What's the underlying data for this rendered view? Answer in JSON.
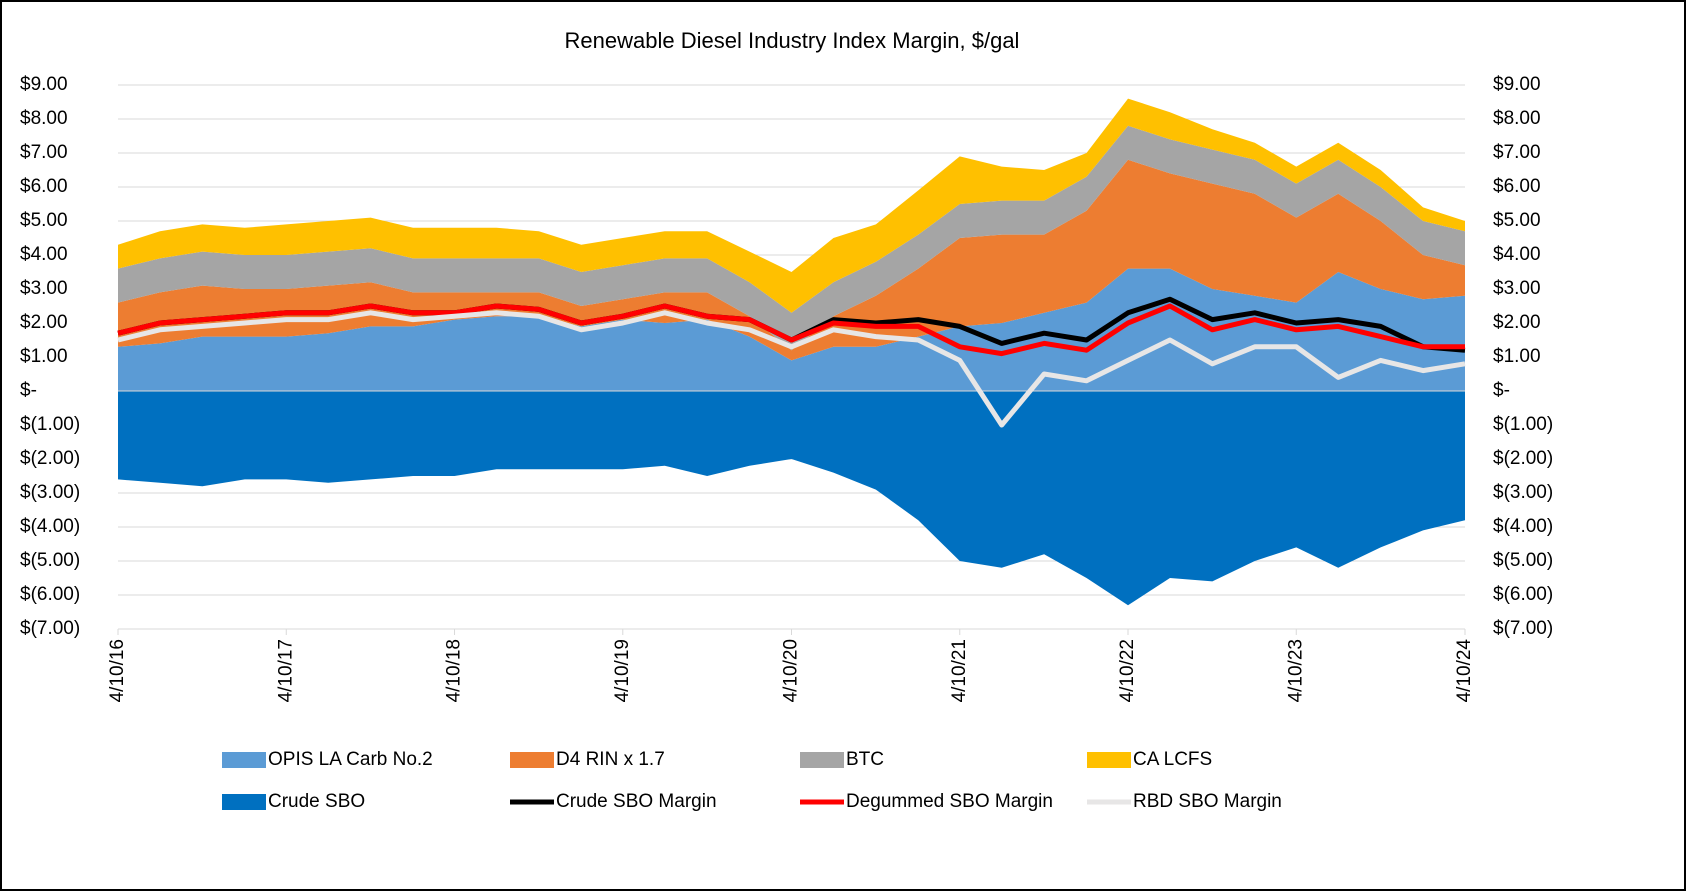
{
  "chart_data": {
    "type": "area",
    "title": "Renewable Diesel Industry Index Margin, $/gal",
    "x": [
      "4/10/16",
      "7/10/16",
      "10/10/16",
      "1/10/17",
      "4/10/17",
      "7/10/17",
      "10/10/17",
      "1/10/18",
      "4/10/18",
      "7/10/18",
      "10/10/18",
      "1/10/19",
      "4/10/19",
      "7/10/19",
      "10/10/19",
      "1/10/20",
      "4/10/20",
      "7/10/20",
      "10/10/20",
      "1/10/21",
      "4/10/21",
      "7/10/21",
      "10/10/21",
      "1/10/22",
      "4/10/22",
      "7/10/22",
      "10/10/22",
      "1/10/23",
      "4/10/23",
      "7/10/23",
      "10/10/23",
      "1/10/24",
      "4/10/24"
    ],
    "xlim": [
      "4/10/16",
      "4/10/24"
    ],
    "xticks": [
      "4/10/16",
      "4/10/17",
      "4/10/18",
      "4/10/19",
      "4/10/20",
      "4/10/21",
      "4/10/22",
      "4/10/23",
      "4/10/24"
    ],
    "ylim": [
      -7,
      9
    ],
    "yticks": [
      {
        "value": 9,
        "label": "$9.00"
      },
      {
        "value": 8,
        "label": "$8.00"
      },
      {
        "value": 7,
        "label": "$7.00"
      },
      {
        "value": 6,
        "label": "$6.00"
      },
      {
        "value": 5,
        "label": "$5.00"
      },
      {
        "value": 4,
        "label": "$4.00"
      },
      {
        "value": 3,
        "label": "$3.00"
      },
      {
        "value": 2,
        "label": "$2.00"
      },
      {
        "value": 1,
        "label": "$1.00"
      },
      {
        "value": 0,
        "label": "$-"
      },
      {
        "value": -1,
        "label": "$(1.00)"
      },
      {
        "value": -2,
        "label": "$(2.00)"
      },
      {
        "value": -3,
        "label": "$(3.00)"
      },
      {
        "value": -4,
        "label": "$(4.00)"
      },
      {
        "value": -5,
        "label": "$(5.00)"
      },
      {
        "value": -6,
        "label": "$(6.00)"
      },
      {
        "value": -7,
        "label": "$(7.00)"
      }
    ],
    "y2lim": [
      -7,
      9
    ],
    "y2ticks": [
      {
        "value": 9,
        "label": "$9.00"
      },
      {
        "value": 8,
        "label": "$8.00"
      },
      {
        "value": 7,
        "label": "$7.00"
      },
      {
        "value": 6,
        "label": "$6.00"
      },
      {
        "value": 5,
        "label": "$5.00"
      },
      {
        "value": 4,
        "label": "$4.00"
      },
      {
        "value": 3,
        "label": "$3.00"
      },
      {
        "value": 2,
        "label": "$2.00"
      },
      {
        "value": 1,
        "label": "$1.00"
      },
      {
        "value": 0,
        "label": "$-"
      },
      {
        "value": -1,
        "label": "$(1.00)"
      },
      {
        "value": -2,
        "label": "$(2.00)"
      },
      {
        "value": -3,
        "label": "$(3.00)"
      },
      {
        "value": -4,
        "label": "$(4.00)"
      },
      {
        "value": -5,
        "label": "$(5.00)"
      },
      {
        "value": -6,
        "label": "$(6.00)"
      },
      {
        "value": -7,
        "label": "$(7.00)"
      }
    ],
    "grid": true,
    "series": [
      {
        "name": "OPIS LA Carb No.2",
        "color": "#5b9bd5",
        "kind": "stacked-area",
        "values": [
          1.3,
          1.4,
          1.6,
          1.6,
          1.6,
          1.7,
          1.9,
          1.9,
          2.1,
          2.2,
          2.2,
          1.9,
          2.1,
          2.0,
          2.1,
          1.6,
          0.9,
          1.3,
          1.3,
          1.6,
          1.9,
          2.0,
          2.3,
          2.6,
          3.6,
          3.6,
          3.0,
          2.8,
          2.6,
          3.5,
          3.0,
          2.7,
          2.8
        ]
      },
      {
        "name": "D4 RIN x 1.7",
        "color": "#ed7d31",
        "kind": "stacked-area",
        "values": [
          1.3,
          1.5,
          1.5,
          1.4,
          1.4,
          1.4,
          1.3,
          1.0,
          0.8,
          0.7,
          0.7,
          0.6,
          0.6,
          0.9,
          0.8,
          0.6,
          0.3,
          0.9,
          1.5,
          2.0,
          2.6,
          2.6,
          2.3,
          2.7,
          3.2,
          2.8,
          3.1,
          3.0,
          2.5,
          2.3,
          2.0,
          1.3,
          0.9
        ]
      },
      {
        "name": "BTC",
        "color": "#a5a5a5",
        "kind": "stacked-area",
        "values": [
          1.0,
          1.0,
          1.0,
          1.0,
          1.0,
          1.0,
          1.0,
          1.0,
          1.0,
          1.0,
          1.0,
          1.0,
          1.0,
          1.0,
          1.0,
          1.0,
          1.1,
          1.0,
          1.0,
          1.0,
          1.0,
          1.0,
          1.0,
          1.0,
          1.0,
          1.0,
          1.0,
          1.0,
          1.0,
          1.0,
          1.0,
          1.0,
          1.0
        ]
      },
      {
        "name": "CA LCFS",
        "color": "#ffc000",
        "kind": "stacked-area",
        "values": [
          0.7,
          0.8,
          0.8,
          0.8,
          0.9,
          0.9,
          0.9,
          0.9,
          0.9,
          0.9,
          0.8,
          0.8,
          0.8,
          0.8,
          0.8,
          0.9,
          1.2,
          1.3,
          1.1,
          1.3,
          1.4,
          1.0,
          0.9,
          0.7,
          0.8,
          0.8,
          0.6,
          0.5,
          0.5,
          0.5,
          0.5,
          0.4,
          0.3
        ]
      },
      {
        "name": "Crude SBO",
        "color": "#0070c0",
        "kind": "area",
        "values": [
          -2.6,
          -2.7,
          -2.8,
          -2.6,
          -2.6,
          -2.7,
          -2.6,
          -2.5,
          -2.5,
          -2.3,
          -2.3,
          -2.3,
          -2.3,
          -2.2,
          -2.5,
          -2.2,
          -2.0,
          -2.4,
          -2.9,
          -3.8,
          -5.0,
          -5.2,
          -4.8,
          -5.5,
          -6.3,
          -5.5,
          -5.6,
          -5.0,
          -4.6,
          -5.2,
          -4.6,
          -4.1,
          -3.8
        ]
      },
      {
        "name": "Crude SBO Margin",
        "color": "#000000",
        "kind": "line",
        "values": [
          1.7,
          2.0,
          2.1,
          2.2,
          2.3,
          2.3,
          2.5,
          2.3,
          2.3,
          2.5,
          2.4,
          2.0,
          2.2,
          2.5,
          2.2,
          2.1,
          1.5,
          2.1,
          2.0,
          2.1,
          1.9,
          1.4,
          1.7,
          1.5,
          2.3,
          2.7,
          2.1,
          2.3,
          2.0,
          2.1,
          1.9,
          1.3,
          1.2
        ]
      },
      {
        "name": "Degummed SBO Margin",
        "color": "#ff0000",
        "kind": "line",
        "values": [
          1.7,
          2.0,
          2.1,
          2.2,
          2.3,
          2.3,
          2.5,
          2.3,
          2.3,
          2.5,
          2.4,
          2.0,
          2.2,
          2.5,
          2.2,
          2.1,
          1.5,
          2.0,
          1.9,
          1.9,
          1.3,
          1.1,
          1.4,
          1.2,
          2.0,
          2.5,
          1.8,
          2.1,
          1.8,
          1.9,
          1.6,
          1.3,
          1.3
        ]
      },
      {
        "name": "RBD SBO Margin",
        "color": "#e7e6e6",
        "kind": "line",
        "values": [
          1.5,
          1.8,
          1.9,
          2.0,
          2.1,
          2.1,
          2.3,
          2.1,
          2.2,
          2.3,
          2.2,
          1.8,
          2.0,
          2.3,
          2.0,
          1.8,
          1.3,
          1.8,
          1.6,
          1.5,
          0.9,
          -1.0,
          0.5,
          0.3,
          0.9,
          1.5,
          0.8,
          1.3,
          1.3,
          0.4,
          0.9,
          0.6,
          0.8
        ]
      }
    ]
  }
}
